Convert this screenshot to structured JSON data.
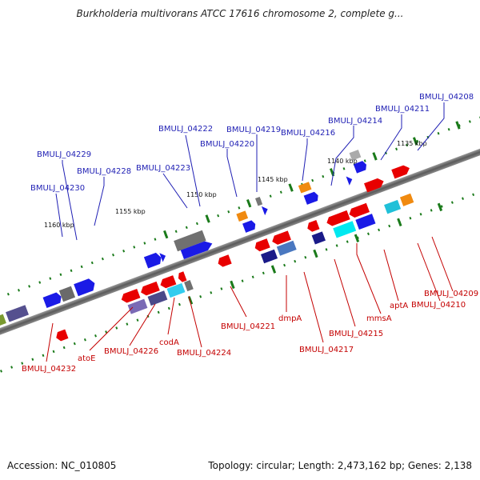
{
  "title": "Burkholderia multivorans ATCC 17616 chromosome 2, complete g...",
  "footer": {
    "accession": "Accession: NC_010805",
    "summary": "Topology: circular; Length: 2,473,162 bp; Genes: 2,138"
  },
  "scale_labels": [
    "1135 kbp",
    "1140 kbp",
    "1145 kbp",
    "1150 kbp",
    "1155 kbp",
    "1160 kbp"
  ],
  "top_labels": [
    "BMULJ_04208",
    "BMULJ_04211",
    "BMULJ_04214",
    "BMULJ_04216",
    "BMULJ_04219",
    "BMULJ_04220",
    "BMULJ_04222",
    "BMULJ_04223",
    "BMULJ_04228",
    "BMULJ_04229",
    "BMULJ_04230"
  ],
  "bottom_labels": [
    "BMULJ_04209",
    "BMULJ_04210",
    "aptA",
    "mmsA",
    "BMULJ_04215",
    "BMULJ_04217",
    "dmpA",
    "BMULJ_04221",
    "BMULJ_04224",
    "codA",
    "BMULJ_04226",
    "atoE",
    "BMULJ_04232"
  ],
  "colors": {
    "top_label": "#1f1fb4",
    "bottom_label": "#c40000",
    "tick": "#1a7a1a",
    "axis": "#777777"
  }
}
